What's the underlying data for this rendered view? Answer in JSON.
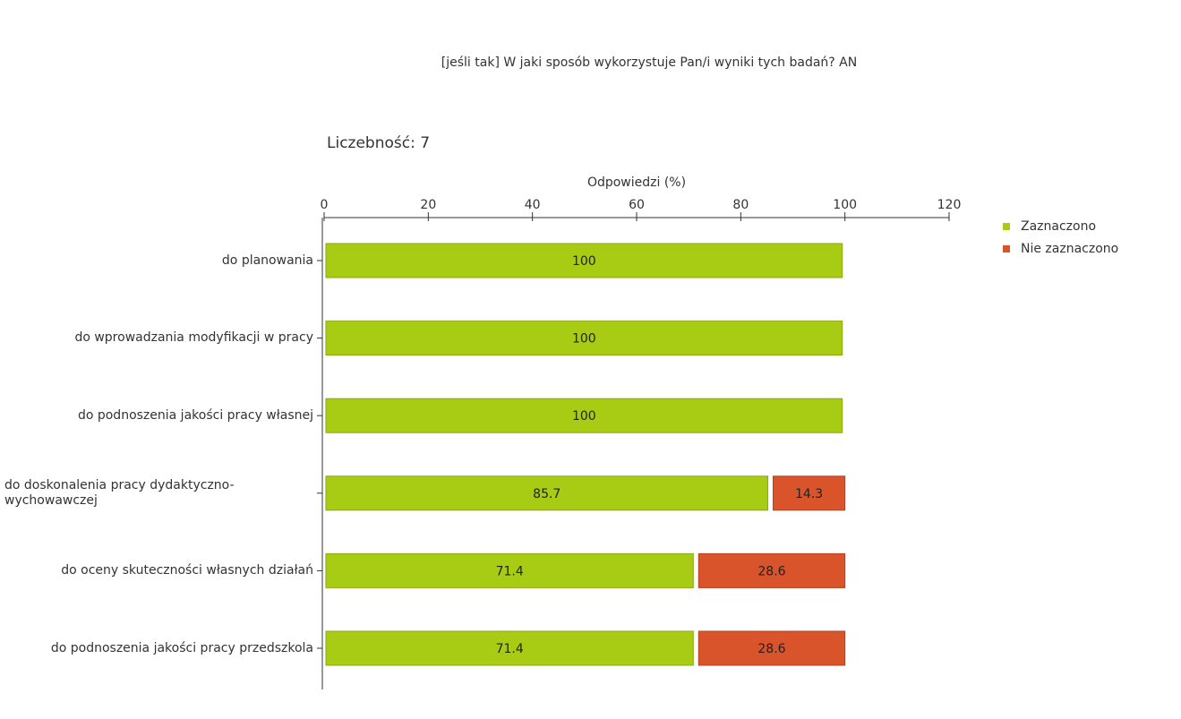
{
  "chart_data": {
    "type": "stacked-barh",
    "title": "[jeśli tak] W jaki sposób wykorzystuje Pan/i wyniki tych badań? AN",
    "subtitle": "Liczebność: 7",
    "x_label": "Odpowiedzi (%)",
    "categories": [
      "do planowania",
      "do wprowadzania modyfikacji w pracy",
      "do podnoszenia jakości pracy własnej",
      "do doskonalenia pracy dydaktyczno-wychowawczej",
      "do oceny skuteczności własnych działań",
      "do podnoszenia jakości pracy przedszkola"
    ],
    "series": [
      {
        "name": "Zaznaczono",
        "color": "#a8cc14",
        "values": [
          100,
          100,
          100,
          85.7,
          71.4,
          71.4
        ]
      },
      {
        "name": "Nie zaznaczono",
        "color": "#d9532b",
        "values": [
          null,
          null,
          null,
          14.3,
          28.6,
          28.6
        ]
      }
    ],
    "xlim": [
      0,
      120
    ],
    "xticks": [
      0,
      20,
      40,
      60,
      80,
      100,
      120
    ],
    "legend": "right"
  }
}
